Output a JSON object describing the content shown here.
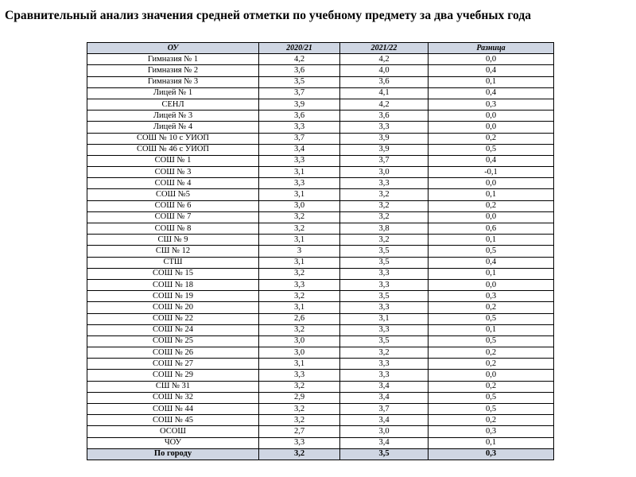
{
  "title": "Сравнительный анализ значения средней отметки по учебному предмету за два учебных года",
  "table": {
    "headers": [
      "ОУ",
      "2020/21",
      "2021/22",
      "Разница"
    ],
    "rows": [
      [
        "Гимназия № 1",
        "4,2",
        "4,2",
        "0,0"
      ],
      [
        "Гимназия № 2",
        "3,6",
        "4,0",
        "0,4"
      ],
      [
        "Гимназия № 3",
        "3,5",
        "3,6",
        "0,1"
      ],
      [
        "Лицей № 1",
        "3,7",
        "4,1",
        "0,4"
      ],
      [
        "СЕНЛ",
        "3,9",
        "4,2",
        "0,3"
      ],
      [
        "Лицей № 3",
        "3,6",
        "3,6",
        "0,0"
      ],
      [
        "Лицей № 4",
        "3,3",
        "3,3",
        "0,0"
      ],
      [
        "СОШ № 10 с УИОП",
        "3,7",
        "3,9",
        "0,2"
      ],
      [
        "СОШ № 46 с УИОП",
        "3,4",
        "3,9",
        "0,5"
      ],
      [
        "СОШ № 1",
        "3,3",
        "3,7",
        "0,4"
      ],
      [
        "СОШ № 3",
        "3,1",
        "3,0",
        "-0,1"
      ],
      [
        "СОШ № 4",
        "3,3",
        "3,3",
        "0,0"
      ],
      [
        "СОШ №5",
        "3,1",
        "3,2",
        "0,1"
      ],
      [
        "СОШ № 6",
        "3,0",
        "3,2",
        "0,2"
      ],
      [
        "СОШ № 7",
        "3,2",
        "3,2",
        "0,0"
      ],
      [
        "СОШ № 8",
        "3,2",
        "3,8",
        "0,6"
      ],
      [
        "СШ № 9",
        "3,1",
        "3,2",
        "0,1"
      ],
      [
        "СШ № 12",
        "3",
        "3,5",
        "0,5"
      ],
      [
        "СТШ",
        "3,1",
        "3,5",
        "0,4"
      ],
      [
        "СОШ № 15",
        "3,2",
        "3,3",
        "0,1"
      ],
      [
        "СОШ № 18",
        "3,3",
        "3,3",
        "0,0"
      ],
      [
        "СОШ № 19",
        "3,2",
        "3,5",
        "0,3"
      ],
      [
        "СОШ № 20",
        "3,1",
        "3,3",
        "0,2"
      ],
      [
        "СОШ № 22",
        "2,6",
        "3,1",
        "0,5"
      ],
      [
        "СОШ № 24",
        "3,2",
        "3,3",
        "0,1"
      ],
      [
        "СОШ № 25",
        "3,0",
        "3,5",
        "0,5"
      ],
      [
        "СОШ № 26",
        "3,0",
        "3,2",
        "0,2"
      ],
      [
        "СОШ № 27",
        "3,1",
        "3,3",
        "0,2"
      ],
      [
        "СОШ № 29",
        "3,3",
        "3,3",
        "0,0"
      ],
      [
        "СШ № 31",
        "3,2",
        "3,4",
        "0,2"
      ],
      [
        "СОШ № 32",
        "2,9",
        "3,4",
        "0,5"
      ],
      [
        "СОШ № 44",
        "3,2",
        "3,7",
        "0,5"
      ],
      [
        "СОШ № 45",
        "3,2",
        "3,4",
        "0,2"
      ],
      [
        "ОСОШ",
        "2,7",
        "3,0",
        "0,3"
      ],
      [
        "ЧОУ",
        "3,3",
        "3,4",
        "0,1"
      ]
    ],
    "total": [
      "По городу",
      "3,2",
      "3,5",
      "0,3"
    ]
  },
  "colors": {
    "header_bg": "#cfd6e3",
    "border": "#000000"
  }
}
